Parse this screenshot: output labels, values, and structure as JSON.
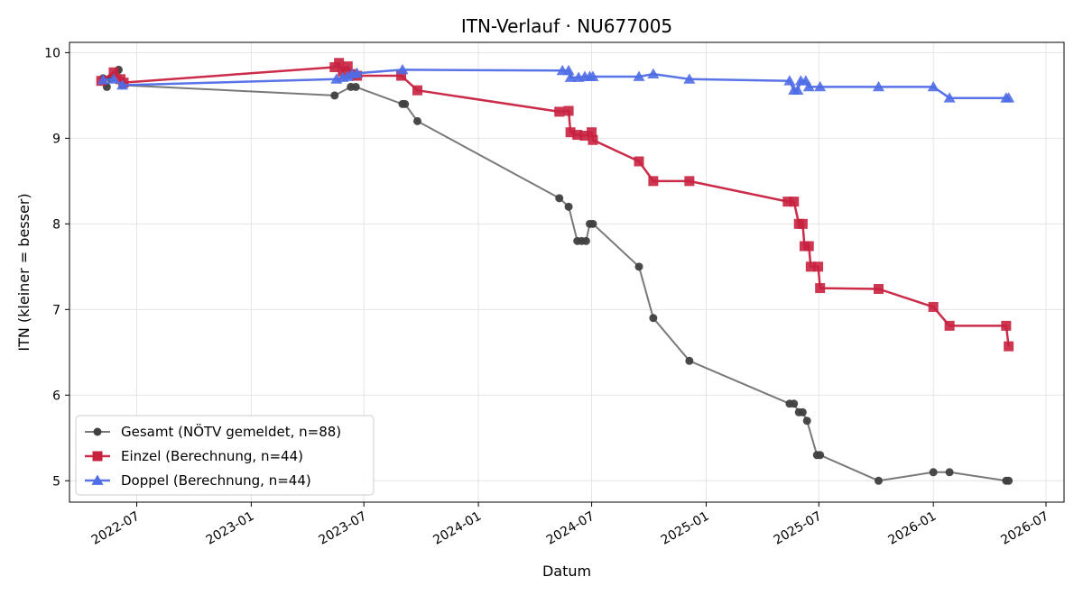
{
  "chart_data": {
    "type": "line",
    "title": "ITN-Verlauf · NU677005",
    "xlabel": "Datum",
    "ylabel": "ITN  (kleiner = besser)",
    "x_type": "date",
    "xlim": [
      "2022-03-15",
      "2026-07-30"
    ],
    "ylim": [
      4.75,
      10.12
    ],
    "x_ticks": [
      "2022-07-01",
      "2023-01-01",
      "2023-07-01",
      "2024-01-01",
      "2024-07-01",
      "2025-01-01",
      "2025-07-01",
      "2026-01-01",
      "2026-07-01"
    ],
    "x_tick_labels": [
      "2022-07",
      "2023-01",
      "2023-07",
      "2024-01",
      "2024-07",
      "2025-01",
      "2025-07",
      "2026-01",
      "2026-07"
    ],
    "y_ticks": [
      5,
      6,
      7,
      8,
      9,
      10
    ],
    "y_tick_labels": [
      "5",
      "6",
      "7",
      "8",
      "9",
      "10"
    ],
    "grid": true,
    "legend_position": "lower-left",
    "series": [
      {
        "name": "Gesamt (NÖTV gemeldet, n=88)",
        "color": "#404040",
        "marker": "circle",
        "points": [
          [
            "2022-05-08",
            9.7
          ],
          [
            "2022-05-14",
            9.6
          ],
          [
            "2022-05-20",
            9.7
          ],
          [
            "2022-06-02",
            9.8
          ],
          [
            "2022-06-08",
            9.62
          ],
          [
            "2023-05-15",
            9.5
          ],
          [
            "2023-06-10",
            9.6
          ],
          [
            "2023-06-18",
            9.6
          ],
          [
            "2023-09-01",
            9.4
          ],
          [
            "2023-09-05",
            9.4
          ],
          [
            "2023-09-25",
            9.2
          ],
          [
            "2024-05-10",
            8.3
          ],
          [
            "2024-05-25",
            8.2
          ],
          [
            "2024-06-08",
            7.8
          ],
          [
            "2024-06-15",
            7.8
          ],
          [
            "2024-06-22",
            7.8
          ],
          [
            "2024-06-28",
            8.0
          ],
          [
            "2024-07-03",
            8.0
          ],
          [
            "2024-09-15",
            7.5
          ],
          [
            "2024-10-08",
            6.9
          ],
          [
            "2024-12-05",
            6.4
          ],
          [
            "2025-05-15",
            5.9
          ],
          [
            "2025-05-22",
            5.9
          ],
          [
            "2025-05-30",
            5.8
          ],
          [
            "2025-06-05",
            5.8
          ],
          [
            "2025-06-12",
            5.7
          ],
          [
            "2025-06-28",
            5.3
          ],
          [
            "2025-07-03",
            5.3
          ],
          [
            "2025-10-05",
            5.0
          ],
          [
            "2026-01-01",
            5.1
          ],
          [
            "2026-01-27",
            5.1
          ],
          [
            "2026-04-28",
            5.0
          ],
          [
            "2026-05-02",
            5.0
          ]
        ]
      },
      {
        "name": "Einzel (Berechnung, n=44)",
        "color": "#c8213f",
        "marker": "square",
        "points": [
          [
            "2022-05-05",
            9.67
          ],
          [
            "2022-05-25",
            9.77
          ],
          [
            "2022-06-05",
            9.69
          ],
          [
            "2022-06-10",
            9.65
          ],
          [
            "2023-05-15",
            9.83
          ],
          [
            "2023-05-22",
            9.88
          ],
          [
            "2023-05-28",
            9.78
          ],
          [
            "2023-06-05",
            9.84
          ],
          [
            "2023-06-12",
            9.75
          ],
          [
            "2023-06-20",
            9.73
          ],
          [
            "2023-08-30",
            9.73
          ],
          [
            "2023-09-25",
            9.56
          ],
          [
            "2024-05-10",
            9.31
          ],
          [
            "2024-05-25",
            9.32
          ],
          [
            "2024-05-28",
            9.07
          ],
          [
            "2024-06-08",
            9.04
          ],
          [
            "2024-06-20",
            9.03
          ],
          [
            "2024-07-01",
            9.07
          ],
          [
            "2024-07-03",
            8.98
          ],
          [
            "2024-09-15",
            8.73
          ],
          [
            "2024-10-08",
            8.5
          ],
          [
            "2024-12-05",
            8.5
          ],
          [
            "2025-05-12",
            8.26
          ],
          [
            "2025-05-22",
            8.26
          ],
          [
            "2025-05-30",
            8.0
          ],
          [
            "2025-06-05",
            8.0
          ],
          [
            "2025-06-08",
            7.74
          ],
          [
            "2025-06-15",
            7.74
          ],
          [
            "2025-06-18",
            7.5
          ],
          [
            "2025-06-30",
            7.5
          ],
          [
            "2025-07-03",
            7.25
          ],
          [
            "2025-10-05",
            7.24
          ],
          [
            "2026-01-01",
            7.03
          ],
          [
            "2026-01-27",
            6.81
          ],
          [
            "2026-04-28",
            6.81
          ],
          [
            "2026-05-02",
            6.57
          ]
        ]
      },
      {
        "name": "Doppel (Berechnung, n=44)",
        "color": "#4f6de6",
        "marker": "triangle",
        "points": [
          [
            "2022-05-08",
            9.68
          ],
          [
            "2022-05-25",
            9.69
          ],
          [
            "2022-06-08",
            9.62
          ],
          [
            "2023-05-18",
            9.69
          ],
          [
            "2023-05-28",
            9.71
          ],
          [
            "2023-06-05",
            9.72
          ],
          [
            "2023-06-12",
            9.75
          ],
          [
            "2023-06-20",
            9.76
          ],
          [
            "2023-09-01",
            9.8
          ],
          [
            "2024-05-15",
            9.79
          ],
          [
            "2024-05-25",
            9.79
          ],
          [
            "2024-05-28",
            9.71
          ],
          [
            "2024-06-10",
            9.71
          ],
          [
            "2024-06-20",
            9.72
          ],
          [
            "2024-06-28",
            9.72
          ],
          [
            "2024-07-03",
            9.72
          ],
          [
            "2024-09-15",
            9.72
          ],
          [
            "2024-10-08",
            9.75
          ],
          [
            "2024-12-05",
            9.69
          ],
          [
            "2025-05-15",
            9.67
          ],
          [
            "2025-05-22",
            9.56
          ],
          [
            "2025-05-28",
            9.56
          ],
          [
            "2025-06-02",
            9.67
          ],
          [
            "2025-06-10",
            9.67
          ],
          [
            "2025-06-15",
            9.6
          ],
          [
            "2025-07-03",
            9.6
          ],
          [
            "2025-10-05",
            9.6
          ],
          [
            "2026-01-01",
            9.6
          ],
          [
            "2026-01-27",
            9.47
          ],
          [
            "2026-04-28",
            9.47
          ],
          [
            "2026-05-02",
            9.47
          ]
        ]
      }
    ]
  }
}
